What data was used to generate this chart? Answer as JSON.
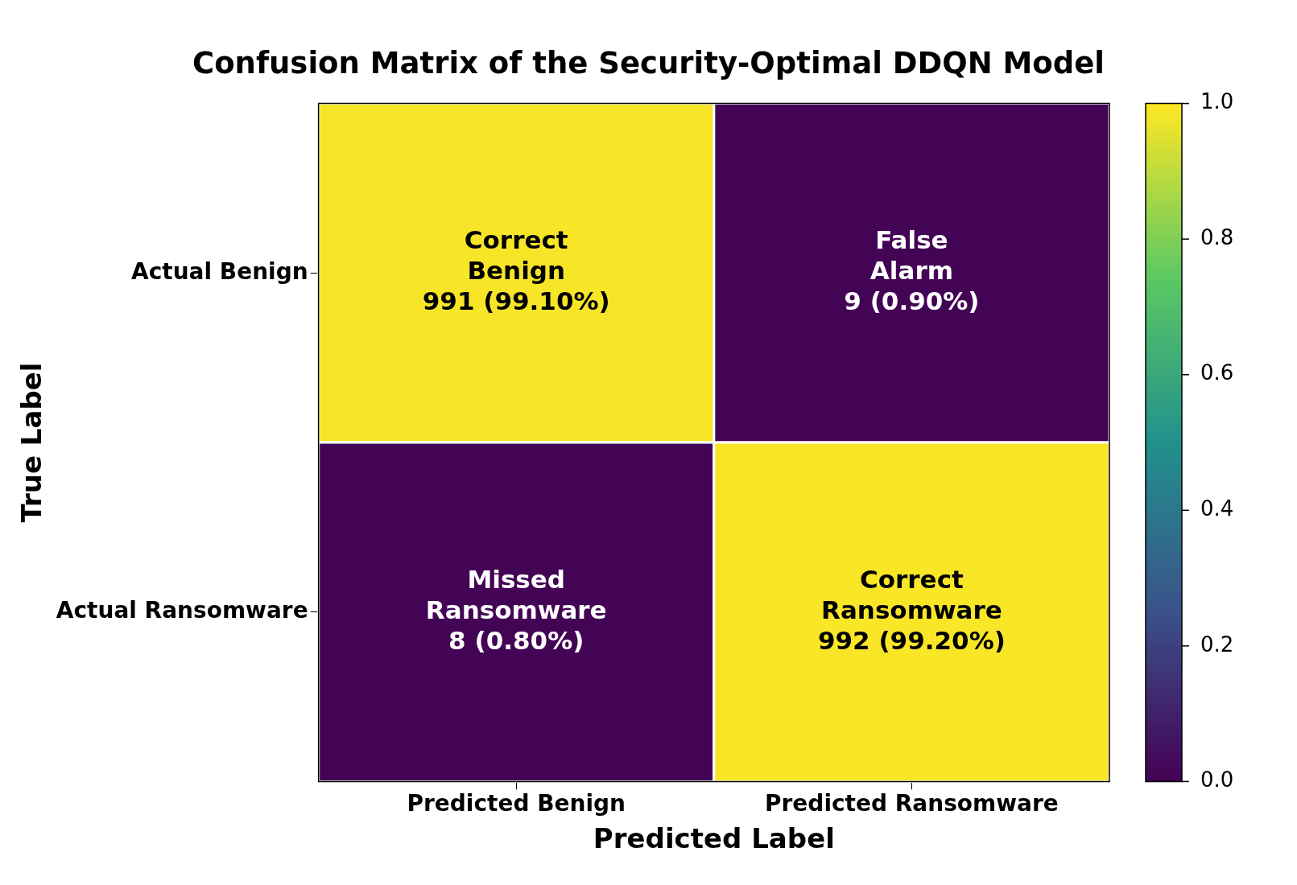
{
  "chart_data": {
    "type": "heatmap",
    "title": "Confusion Matrix of the Security-Optimal DDQN Model",
    "xlabel": "Predicted Label",
    "ylabel": "True Label",
    "categories": [
      "Predicted Benign",
      "Predicted Ransomware"
    ],
    "y_categories": [
      "Actual Benign",
      "Actual Ransomware"
    ],
    "cells": [
      [
        0.991,
        0.009
      ],
      [
        0.008,
        0.992
      ]
    ],
    "cell_labels": [
      [
        "Correct\nBenign\n991 (99.10%)",
        "False\nAlarm\n9 (0.90%)"
      ],
      [
        "Missed\nRansomware\n8 (0.80%)",
        "Correct\nRansomware\n992 (99.20%)"
      ]
    ],
    "clim": [
      0,
      1
    ],
    "cticks": [
      {
        "value": 0,
        "label": "0.0"
      },
      0.2,
      0.4,
      0.6,
      0.8,
      {
        "value": 1,
        "label": "1.0"
      }
    ]
  }
}
